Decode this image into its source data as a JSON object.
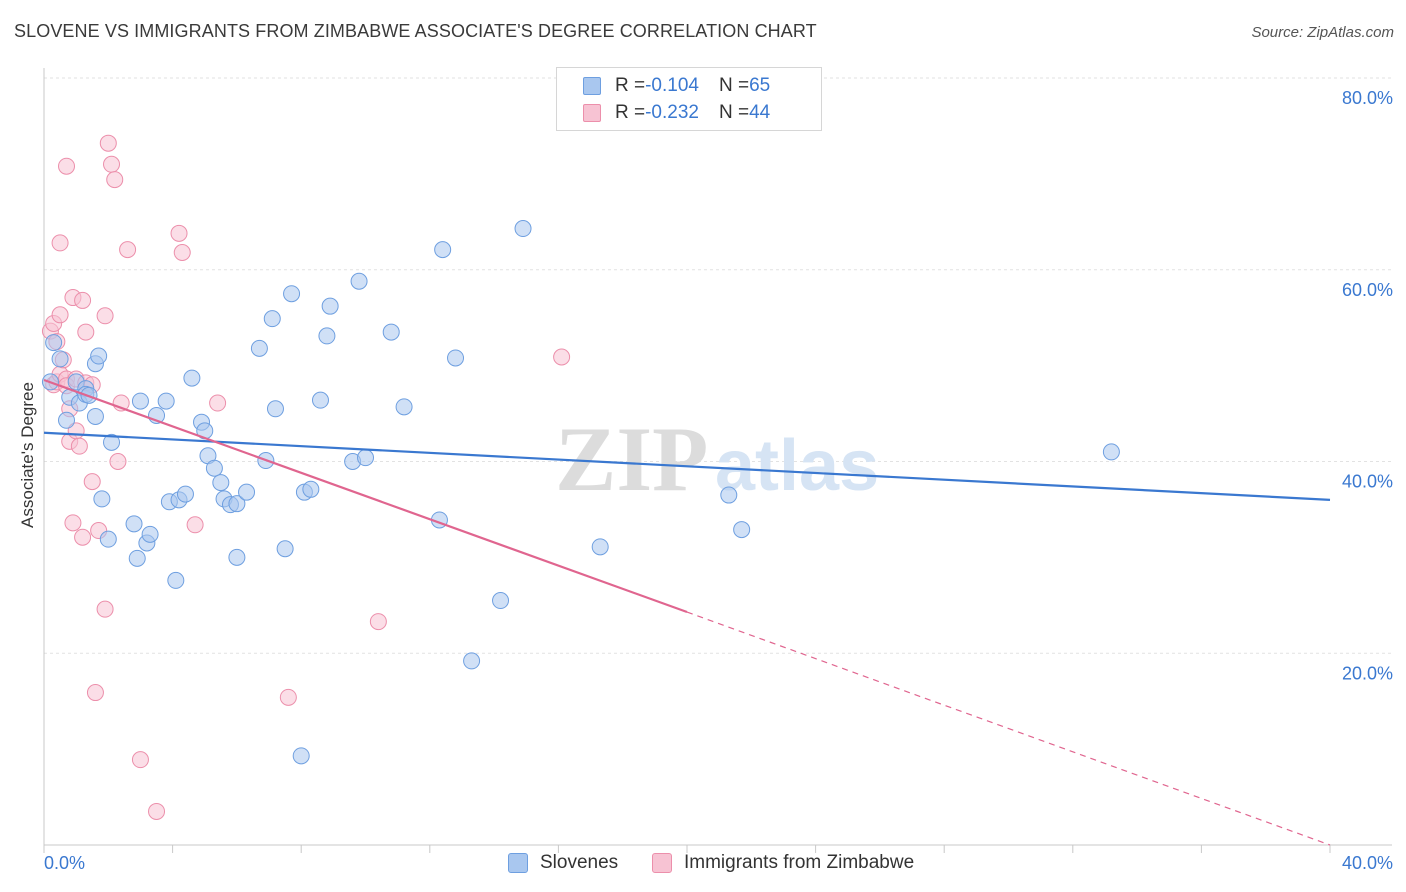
{
  "title": "SLOVENE VS IMMIGRANTS FROM ZIMBABWE ASSOCIATE'S DEGREE CORRELATION CHART",
  "source": "Source: ZipAtlas.com",
  "watermark": {
    "zip": "ZIP",
    "atlas": "atlas"
  },
  "legend": {
    "rows": [
      {
        "r_label": "R = ",
        "r_value": "-0.104",
        "n_label": "N = ",
        "n_value": "65",
        "color": "#a9c7ef",
        "border": "#6e9fe0"
      },
      {
        "r_label": "R = ",
        "r_value": "-0.232",
        "n_label": "N = ",
        "n_value": "44",
        "color": "#f7c3d3",
        "border": "#ec8fab"
      }
    ]
  },
  "bottom_legend": {
    "items": [
      {
        "label": "Slovenes",
        "color": "#a9c7ef",
        "border": "#6e9fe0"
      },
      {
        "label": "Immigrants from Zimbabwe",
        "color": "#f7c3d3",
        "border": "#ec8fab"
      }
    ]
  },
  "chart_data": {
    "type": "scatter",
    "title": "SLOVENE VS IMMIGRANTS FROM ZIMBABWE ASSOCIATE'S DEGREE CORRELATION CHART",
    "xlabel": "",
    "ylabel": "Associate's Degree",
    "xlim": [
      0,
      40
    ],
    "ylim": [
      0,
      80
    ],
    "x_tick_labels": [
      "0.0%",
      "40.0%"
    ],
    "y_tick_labels": [
      "20.0%",
      "40.0%",
      "60.0%",
      "80.0%"
    ],
    "y_ticks": [
      20,
      40,
      60,
      80
    ],
    "grid": true,
    "series": [
      {
        "name": "Slovenes",
        "color": "#3a78d0",
        "fill": "#a9c7ef",
        "points": [
          [
            0.2,
            48.3
          ],
          [
            0.3,
            52.4
          ],
          [
            0.5,
            50.7
          ],
          [
            0.7,
            44.3
          ],
          [
            0.8,
            46.7
          ],
          [
            1.0,
            48.3
          ],
          [
            1.1,
            46.1
          ],
          [
            1.3,
            47.6
          ],
          [
            1.3,
            47.0
          ],
          [
            1.6,
            44.7
          ],
          [
            1.6,
            50.2
          ],
          [
            1.7,
            51.0
          ],
          [
            1.8,
            36.1
          ],
          [
            2.0,
            31.9
          ],
          [
            2.1,
            42.0
          ],
          [
            2.8,
            33.5
          ],
          [
            2.9,
            29.9
          ],
          [
            3.0,
            46.3
          ],
          [
            3.2,
            31.5
          ],
          [
            3.3,
            32.4
          ],
          [
            3.5,
            44.8
          ],
          [
            3.8,
            46.3
          ],
          [
            3.9,
            35.8
          ],
          [
            4.1,
            27.6
          ],
          [
            4.2,
            36.0
          ],
          [
            4.4,
            36.6
          ],
          [
            4.6,
            48.7
          ],
          [
            4.9,
            44.1
          ],
          [
            5.0,
            43.2
          ],
          [
            5.1,
            40.6
          ],
          [
            5.3,
            39.3
          ],
          [
            5.5,
            37.8
          ],
          [
            5.6,
            36.1
          ],
          [
            5.8,
            35.5
          ],
          [
            6.0,
            35.6
          ],
          [
            6.3,
            36.8
          ],
          [
            6.0,
            30.0
          ],
          [
            6.7,
            51.8
          ],
          [
            6.9,
            40.1
          ],
          [
            7.1,
            54.9
          ],
          [
            7.2,
            45.5
          ],
          [
            7.5,
            30.9
          ],
          [
            7.7,
            57.5
          ],
          [
            8.0,
            9.3
          ],
          [
            8.1,
            36.8
          ],
          [
            8.3,
            37.1
          ],
          [
            8.6,
            46.4
          ],
          [
            8.8,
            53.1
          ],
          [
            8.9,
            56.2
          ],
          [
            9.6,
            40.0
          ],
          [
            9.8,
            58.8
          ],
          [
            10.0,
            40.4
          ],
          [
            10.8,
            53.5
          ],
          [
            11.2,
            45.7
          ],
          [
            12.3,
            33.9
          ],
          [
            12.4,
            62.1
          ],
          [
            12.8,
            50.8
          ],
          [
            13.3,
            19.2
          ],
          [
            14.2,
            25.5
          ],
          [
            14.9,
            64.3
          ],
          [
            17.3,
            31.1
          ],
          [
            21.3,
            36.5
          ],
          [
            21.7,
            32.9
          ],
          [
            33.2,
            41.0
          ],
          [
            1.4,
            46.9
          ]
        ]
      },
      {
        "name": "Immigrants from Zimbabwe",
        "color": "#e0658f",
        "fill": "#f7c3d3",
        "points": [
          [
            0.2,
            53.6
          ],
          [
            0.3,
            54.4
          ],
          [
            0.3,
            48.0
          ],
          [
            0.4,
            48.3
          ],
          [
            0.5,
            49.1
          ],
          [
            0.5,
            62.8
          ],
          [
            0.5,
            55.3
          ],
          [
            0.6,
            50.6
          ],
          [
            0.7,
            70.8
          ],
          [
            0.7,
            48.6
          ],
          [
            0.7,
            47.9
          ],
          [
            0.8,
            45.5
          ],
          [
            0.8,
            42.1
          ],
          [
            0.9,
            33.6
          ],
          [
            0.9,
            57.1
          ],
          [
            1.0,
            48.6
          ],
          [
            1.0,
            43.2
          ],
          [
            1.1,
            41.6
          ],
          [
            1.2,
            56.8
          ],
          [
            1.2,
            32.1
          ],
          [
            1.3,
            53.5
          ],
          [
            1.3,
            48.2
          ],
          [
            1.5,
            48.0
          ],
          [
            1.5,
            37.9
          ],
          [
            1.6,
            15.9
          ],
          [
            1.7,
            32.8
          ],
          [
            1.9,
            24.6
          ],
          [
            1.9,
            55.2
          ],
          [
            2.0,
            73.2
          ],
          [
            2.1,
            71.0
          ],
          [
            2.2,
            69.4
          ],
          [
            2.3,
            40.0
          ],
          [
            2.4,
            46.1
          ],
          [
            2.6,
            62.1
          ],
          [
            3.0,
            8.9
          ],
          [
            3.5,
            3.5
          ],
          [
            4.2,
            63.8
          ],
          [
            4.3,
            61.8
          ],
          [
            4.7,
            33.4
          ],
          [
            5.4,
            46.1
          ],
          [
            7.6,
            15.4
          ],
          [
            10.4,
            23.3
          ],
          [
            16.1,
            50.9
          ],
          [
            0.4,
            52.5
          ]
        ]
      }
    ],
    "trendlines": [
      {
        "series": "Slovenes",
        "x_start": 0.0,
        "y_start": 43.0,
        "x_end": 40.0,
        "y_end": 36.0,
        "style": "solid"
      },
      {
        "series": "Immigrants from Zimbabwe",
        "x_start": 0.0,
        "y_start": 48.5,
        "x_end": 20.0,
        "y_end": 24.3,
        "x_dash_end": 40.0,
        "y_dash_end": 0.0,
        "style": "solid-then-dashed"
      }
    ]
  }
}
